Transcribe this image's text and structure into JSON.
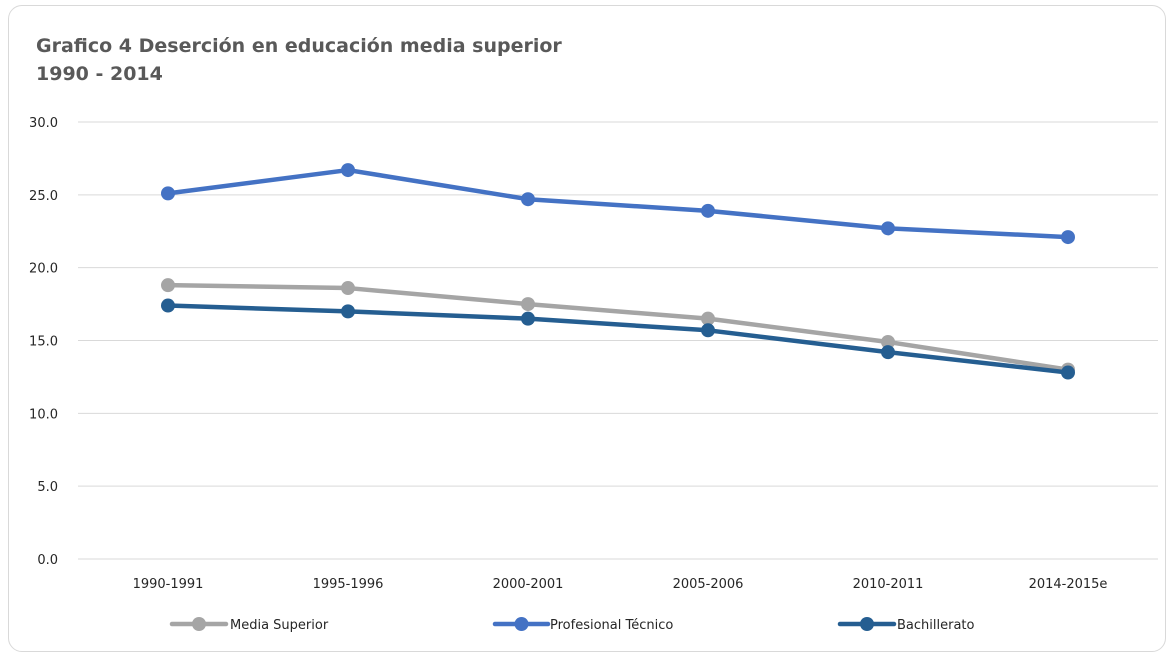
{
  "chart_data": {
    "type": "line",
    "title_line1": "Grafico 4 Deserción en educación media superior",
    "title_line2": "1990 - 2014",
    "categories": [
      "1990-1991",
      "1995-1996",
      "2000-2001",
      "2005-2006",
      "2010-2011",
      "2014-2015e"
    ],
    "ylim": [
      0,
      30
    ],
    "yticks": [
      "0.0",
      "5.0",
      "10.0",
      "15.0",
      "20.0",
      "25.0",
      "30.0"
    ],
    "grid": true,
    "legend_position": "bottom",
    "series": [
      {
        "name": "Media Superior",
        "color": "#a5a5a5",
        "values": [
          18.8,
          18.6,
          17.5,
          16.5,
          14.9,
          13.0
        ]
      },
      {
        "name": "Profesional Técnico",
        "color": "#4472c4",
        "values": [
          25.1,
          26.7,
          24.7,
          23.9,
          22.7,
          22.1
        ]
      },
      {
        "name": "Bachillerato",
        "color": "#255e91",
        "values": [
          17.4,
          17.0,
          16.5,
          15.7,
          14.2,
          12.8
        ]
      }
    ]
  }
}
